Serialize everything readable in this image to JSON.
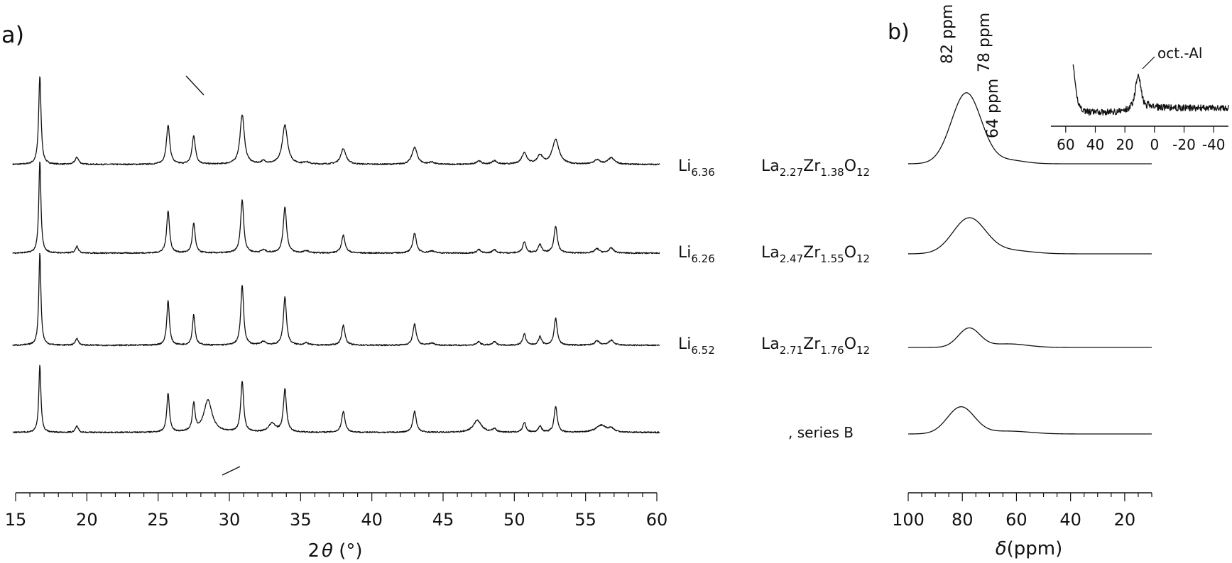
{
  "panels": {
    "a_label": "a)",
    "b_label": "b)"
  },
  "sample_labels": [
    {
      "li": "Li",
      "li_sub": "6.36",
      "la": "La",
      "la_sub": "2.27",
      "zr": "Zr",
      "zr_sub": "1.38",
      "o": "O",
      "o_sub": "12"
    },
    {
      "li": "Li",
      "li_sub": "6.26",
      "la": "La",
      "la_sub": "2.47",
      "zr": "Zr",
      "zr_sub": "1.55",
      "o": "O",
      "o_sub": "12"
    },
    {
      "li": "Li",
      "li_sub": "6.52",
      "la": "La",
      "la_sub": "2.71",
      "zr": "Zr",
      "zr_sub": "1.76",
      "o": "O",
      "o_sub": "12"
    }
  ],
  "bottom_label": ", series B",
  "chart_data": [
    {
      "type": "line",
      "panel": "a)",
      "xlabel_prefix": "2",
      "xlabel_symbol": "θ",
      "xlabel_suffix": " (°)",
      "xlim": [
        15,
        60
      ],
      "xticks": [
        15,
        20,
        25,
        30,
        35,
        40,
        45,
        50,
        55,
        60
      ],
      "peaks_2theta": [
        16.7,
        19.3,
        25.7,
        27.5,
        30.9,
        33.9,
        38.0,
        43.0,
        47.5,
        48.6,
        50.7,
        51.8,
        52.9,
        55.8,
        56.8
      ],
      "series": [
        {
          "peaks": [
            [
              16.7,
              125,
              0.1
            ],
            [
              19.3,
              10,
              0.15
            ],
            [
              25.7,
              55,
              0.14
            ],
            [
              27.5,
              40,
              0.14
            ],
            [
              30.9,
              70,
              0.18
            ],
            [
              32.4,
              4,
              0.2
            ],
            [
              33.9,
              55,
              0.22
            ],
            [
              35.4,
              3,
              0.2
            ],
            [
              38.0,
              22,
              0.22
            ],
            [
              43.0,
              24,
              0.22
            ],
            [
              44.2,
              3,
              0.2
            ],
            [
              47.5,
              5,
              0.2
            ],
            [
              48.6,
              5,
              0.2
            ],
            [
              50.7,
              16,
              0.22
            ],
            [
              51.8,
              12,
              0.22
            ],
            [
              52.9,
              35,
              0.28
            ],
            [
              55.8,
              6,
              0.25
            ],
            [
              56.8,
              9,
              0.28
            ]
          ]
        },
        {
          "peaks": [
            [
              16.7,
              130,
              0.09
            ],
            [
              19.3,
              10,
              0.12
            ],
            [
              25.7,
              60,
              0.12
            ],
            [
              27.5,
              42,
              0.12
            ],
            [
              30.9,
              75,
              0.13
            ],
            [
              32.4,
              4,
              0.2
            ],
            [
              33.9,
              65,
              0.14
            ],
            [
              35.4,
              3,
              0.2
            ],
            [
              38.0,
              25,
              0.15
            ],
            [
              43.0,
              28,
              0.15
            ],
            [
              44.2,
              3,
              0.2
            ],
            [
              47.5,
              5,
              0.15
            ],
            [
              48.6,
              5,
              0.15
            ],
            [
              50.7,
              16,
              0.14
            ],
            [
              51.8,
              12,
              0.14
            ],
            [
              52.9,
              38,
              0.14
            ],
            [
              55.8,
              6,
              0.2
            ],
            [
              56.8,
              7,
              0.2
            ]
          ]
        },
        {
          "peaks": [
            [
              16.7,
              130,
              0.09
            ],
            [
              19.3,
              10,
              0.12
            ],
            [
              25.7,
              63,
              0.11
            ],
            [
              27.5,
              43,
              0.11
            ],
            [
              30.9,
              85,
              0.12
            ],
            [
              32.4,
              5,
              0.2
            ],
            [
              33.9,
              68,
              0.13
            ],
            [
              35.4,
              3,
              0.2
            ],
            [
              38.0,
              28,
              0.14
            ],
            [
              43.0,
              30,
              0.14
            ],
            [
              44.2,
              3,
              0.2
            ],
            [
              47.5,
              5,
              0.15
            ],
            [
              48.6,
              5,
              0.15
            ],
            [
              50.7,
              16,
              0.13
            ],
            [
              51.8,
              12,
              0.13
            ],
            [
              52.9,
              38,
              0.13
            ],
            [
              55.8,
              6,
              0.2
            ],
            [
              56.8,
              7,
              0.2
            ]
          ]
        },
        {
          "peaks": [
            [
              16.7,
              95,
              0.09
            ],
            [
              19.3,
              9,
              0.12
            ],
            [
              25.7,
              55,
              0.11
            ],
            [
              27.5,
              38,
              0.11
            ],
            [
              28.5,
              45,
              0.35
            ],
            [
              30.9,
              72,
              0.12
            ],
            [
              33.0,
              12,
              0.3
            ],
            [
              33.9,
              60,
              0.13
            ],
            [
              38.0,
              30,
              0.14
            ],
            [
              43.0,
              30,
              0.14
            ],
            [
              47.4,
              17,
              0.35
            ],
            [
              48.6,
              5,
              0.15
            ],
            [
              50.7,
              14,
              0.13
            ],
            [
              51.8,
              9,
              0.13
            ],
            [
              52.9,
              36,
              0.13
            ],
            [
              56.1,
              10,
              0.45
            ],
            [
              56.8,
              5,
              0.2
            ]
          ]
        }
      ]
    },
    {
      "type": "line",
      "panel": "b)",
      "xlabel_symbol": "δ",
      "xlabel_suffix": "(ppm)",
      "xlim": [
        100,
        10
      ],
      "xticks": [
        100,
        80,
        60,
        40,
        20
      ],
      "annotations": [
        "82 ppm",
        "78 ppm",
        "64 ppm"
      ],
      "series": [
        {
          "peaks": [
            [
              78.5,
              100,
              5.5
            ],
            [
              63,
              5,
              6
            ]
          ]
        },
        {
          "peaks": [
            [
              77.5,
              50,
              6
            ],
            [
              63,
              5,
              8
            ]
          ]
        },
        {
          "peaks": [
            [
              77.5,
              27,
              4
            ],
            [
              63,
              5,
              7
            ]
          ]
        },
        {
          "peaks": [
            [
              80.5,
              38,
              5
            ],
            [
              63,
              4,
              8
            ]
          ]
        }
      ],
      "inset": {
        "annotation": "oct.-Al",
        "xlim": [
          70,
          -50
        ],
        "xticks": [
          60,
          40,
          20,
          0,
          -20,
          -40
        ],
        "tick_labels": [
          "60",
          "40",
          "20",
          "0",
          "-20",
          "-40"
        ]
      }
    }
  ]
}
